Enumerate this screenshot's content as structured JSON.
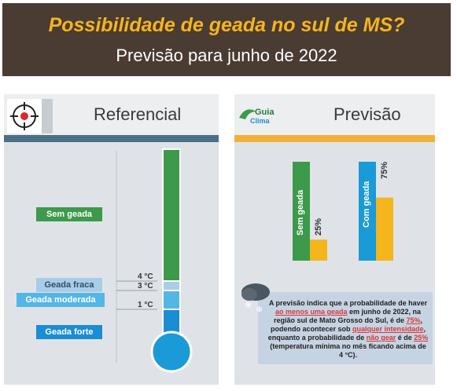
{
  "header": {
    "title": "Possibilidade de geada no sul de MS?",
    "subtitle": "Previsão para junho de 2022"
  },
  "left_panel": {
    "title": "Referencial",
    "icon": "target-icon",
    "categories": [
      {
        "label": "Sem geada",
        "color": "#3d9a4a"
      },
      {
        "label": "Geada fraca",
        "color": "#a9cde8"
      },
      {
        "label": "Geada moderada",
        "color": "#54b6e6"
      },
      {
        "label": "Geada forte",
        "color": "#1a8dd4"
      }
    ],
    "temps": [
      "4 °C",
      "3 °C",
      "1 °C"
    ]
  },
  "right_panel": {
    "title": "Previsão",
    "logo_line1": "Guia",
    "logo_line2": "Clima"
  },
  "chart_data": {
    "type": "bar",
    "categories": [
      "Sem geada",
      "Com geada"
    ],
    "values": [
      25,
      75
    ],
    "value_labels": [
      "25%",
      "75%"
    ],
    "colors": [
      "#3d9a4a",
      "#1a9ad6"
    ],
    "accent": "#f5b51c"
  },
  "note": {
    "p1": "A previsão indica que a probabilidade de haver",
    "p2": "ao menos uma geada",
    "p3": " em junho de 2022, na região sul de Mato Grosso do Sul, é de ",
    "p4": "75%",
    "p5": ", podendo acontecer sob ",
    "p6": "qualquer intensidade",
    "p7": ", enquanto a probabilidade de ",
    "p8": "não gear",
    "p9": " é de ",
    "p10": "25%",
    "p11": " (temperatura mínima no mês ficando acima de 4 °C)."
  }
}
